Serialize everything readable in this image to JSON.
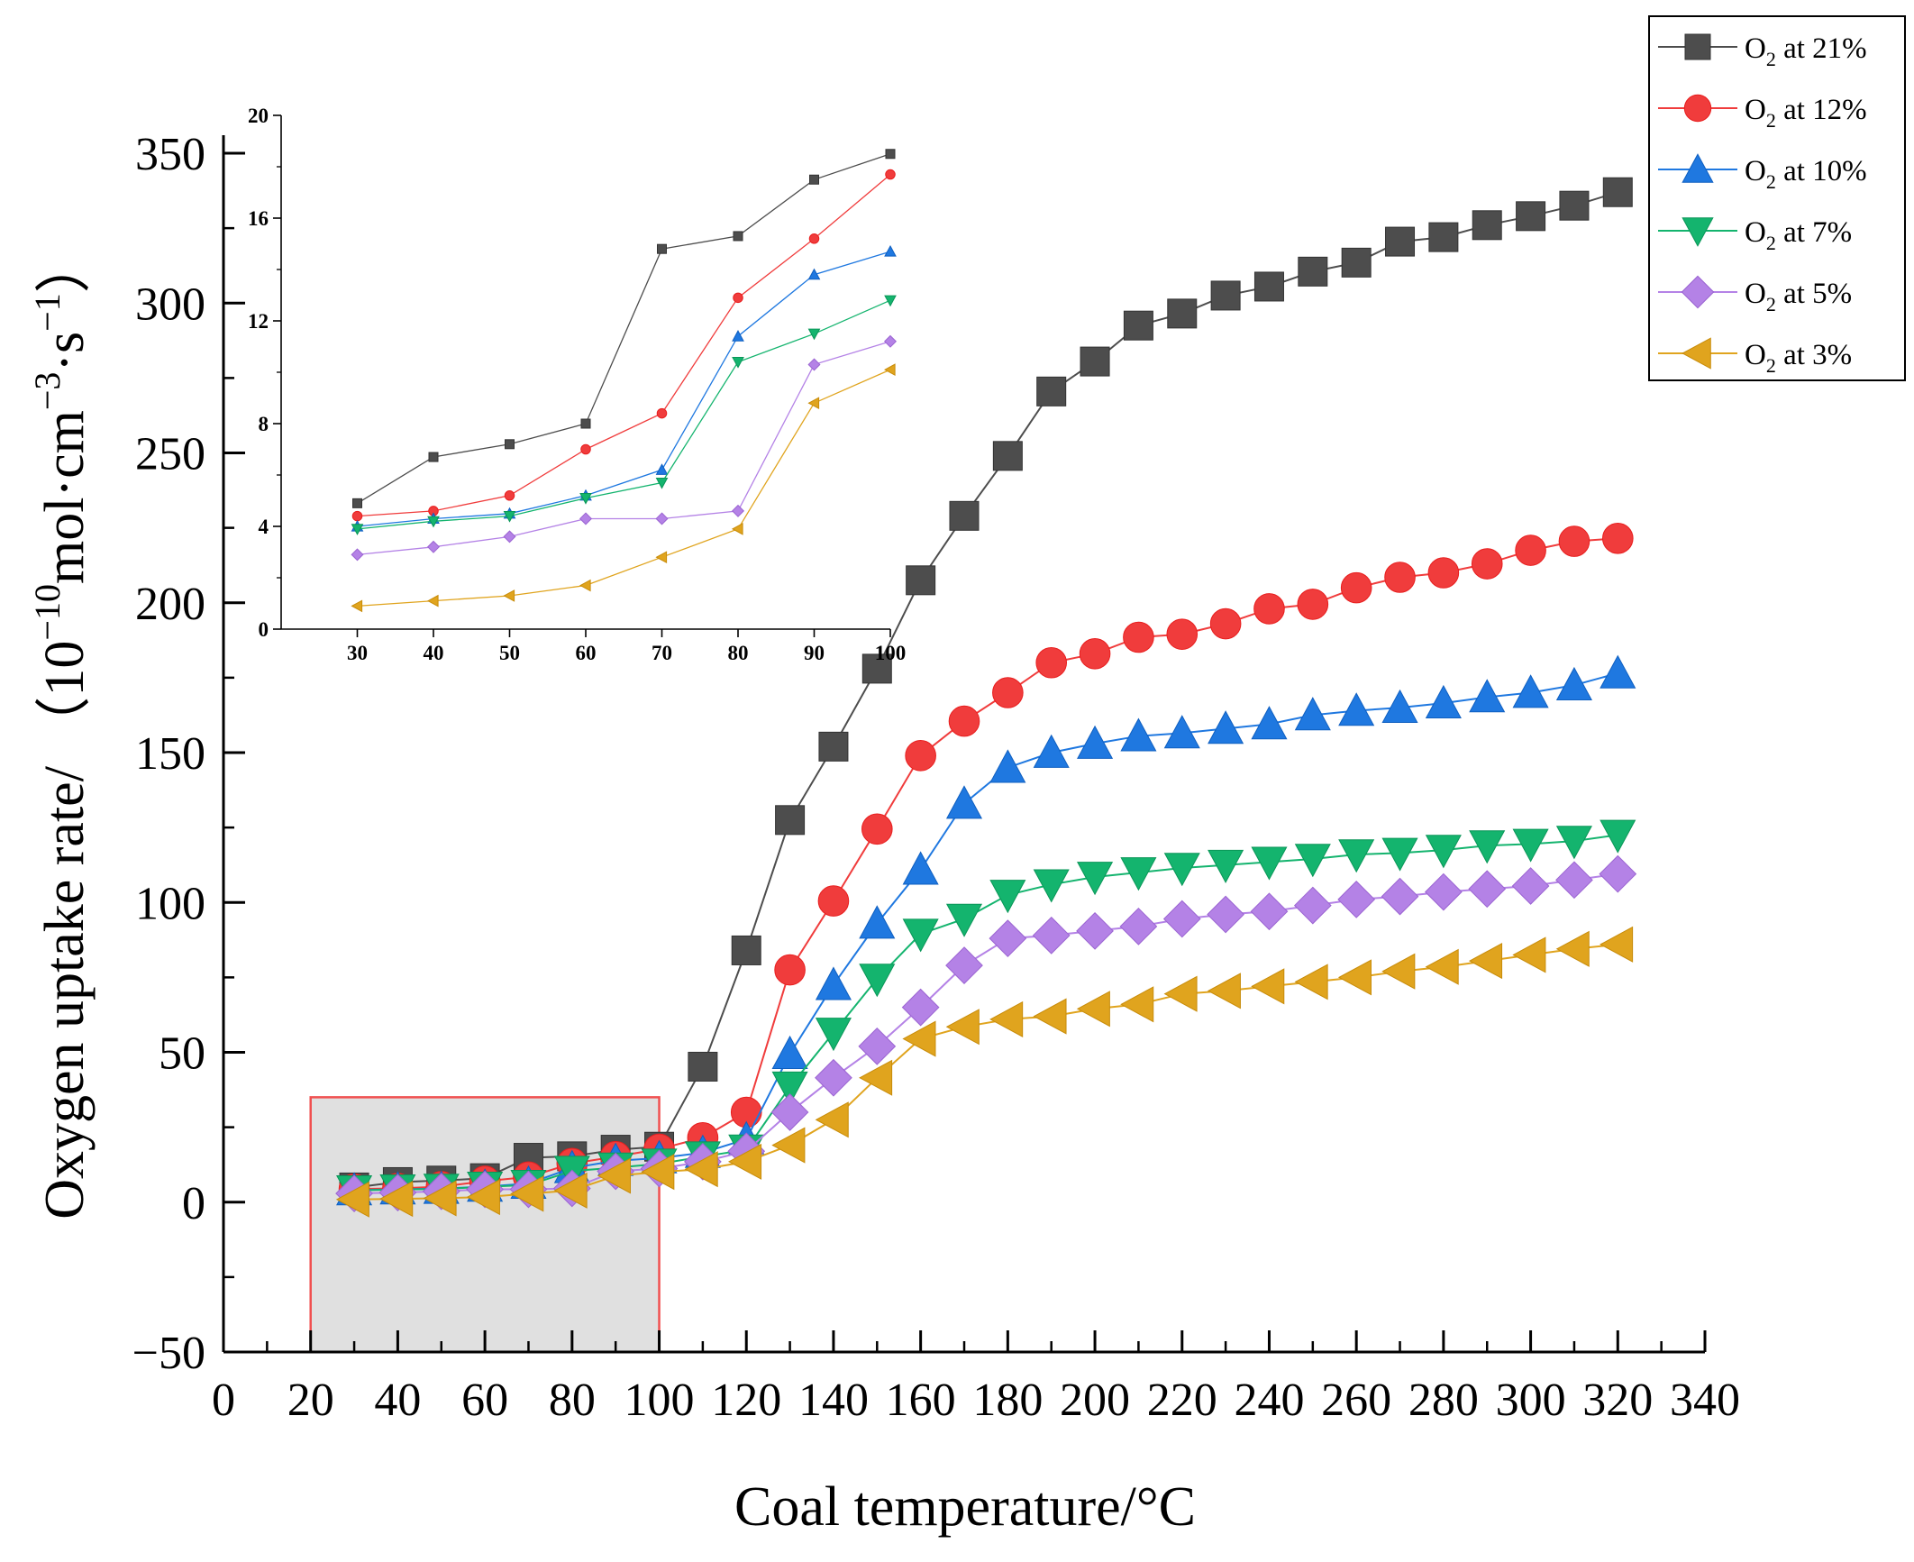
{
  "chart_data": {
    "type": "line",
    "xlabel": "Coal temperature/°C",
    "ylabel": {
      "base": "Oxygen uptake rate/ （10",
      "exp1": "−10",
      "mid1": "mol·cm",
      "exp2": "−3",
      "mid2": "·s",
      "exp3": "−1",
      "tail": "）"
    },
    "xlim": [
      0,
      340
    ],
    "ylim": [
      -50,
      350
    ],
    "xticks": [
      0,
      20,
      40,
      60,
      80,
      100,
      120,
      140,
      160,
      180,
      200,
      220,
      240,
      260,
      280,
      300,
      320,
      340
    ],
    "yticks": [
      -50,
      0,
      50,
      100,
      150,
      200,
      250,
      300,
      350
    ],
    "ytick_labels": [
      "−50",
      "0",
      "50",
      "100",
      "150",
      "200",
      "250",
      "300",
      "350"
    ],
    "highlight_region": {
      "x": [
        20,
        100
      ],
      "y": [
        -50,
        35
      ]
    },
    "x": [
      30,
      40,
      50,
      60,
      70,
      80,
      90,
      100,
      110,
      120,
      130,
      140,
      150,
      160,
      170,
      180,
      190,
      200,
      210,
      220,
      230,
      240,
      250,
      260,
      270,
      280,
      290,
      300,
      310,
      320
    ],
    "series": [
      {
        "name": "O2 at 21%",
        "label_sub": "2",
        "label_prefix": "O",
        "label_suffix": " at 21%",
        "color": "#4d4d4d",
        "edge": "#333333",
        "marker": "square",
        "values": [
          4.9,
          6.7,
          7.2,
          8.0,
          14.8,
          15.3,
          17.5,
          18.5,
          45.2,
          84.0,
          127.5,
          152.0,
          178.0,
          207.5,
          229.0,
          249.0,
          270.5,
          280.5,
          292.5,
          296.5,
          302.5,
          305.5,
          310.5,
          313.5,
          320.5,
          322.0,
          326.0,
          329.0,
          332.5,
          337.0
        ]
      },
      {
        "name": "O2 at 12%",
        "label_sub": "2",
        "label_prefix": "O",
        "label_suffix": " at 12%",
        "color": "#f03c3c",
        "edge": "#e81e1e",
        "marker": "circle",
        "values": [
          4.4,
          4.6,
          5.2,
          7.0,
          8.4,
          12.9,
          15.2,
          17.7,
          21.5,
          30.0,
          77.5,
          100.5,
          124.5,
          149.0,
          160.5,
          170.0,
          180.0,
          183.0,
          188.5,
          189.5,
          193.0,
          198.0,
          199.5,
          205.0,
          208.5,
          210.0,
          213.0,
          217.5,
          220.5,
          221.5
        ]
      },
      {
        "name": "O2 at 10%",
        "label_sub": "2",
        "label_prefix": "O",
        "label_suffix": " at 10%",
        "color": "#1f78e0",
        "edge": "#0f5fc0",
        "marker": "triangle-up",
        "values": [
          4.0,
          4.3,
          4.5,
          5.2,
          6.2,
          11.4,
          13.8,
          14.7,
          16.5,
          21.0,
          49.5,
          72.5,
          93.0,
          111.0,
          133.0,
          145.0,
          150.0,
          153.0,
          155.5,
          156.5,
          158.0,
          159.5,
          162.5,
          164.0,
          165.0,
          166.5,
          168.5,
          170.0,
          172.5,
          176.5
        ]
      },
      {
        "name": "O2 at 7%",
        "label_sub": "2",
        "label_prefix": "O",
        "label_suffix": " at 7%",
        "color": "#14b46e",
        "edge": "#0a9658",
        "marker": "triangle-down",
        "values": [
          3.9,
          4.2,
          4.4,
          5.1,
          5.7,
          10.4,
          11.5,
          12.8,
          15.2,
          17.5,
          38.5,
          56.5,
          74.5,
          89.5,
          94.5,
          102.5,
          106.0,
          108.5,
          110.0,
          111.5,
          112.5,
          113.5,
          114.5,
          116.0,
          116.5,
          117.5,
          119.0,
          119.5,
          120.5,
          122.5
        ]
      },
      {
        "name": "O2 at 5%",
        "label_sub": "2",
        "label_prefix": "O",
        "label_suffix": " at 5%",
        "color": "#b482e6",
        "edge": "#9b64d2",
        "marker": "diamond",
        "values": [
          2.9,
          3.2,
          3.6,
          4.3,
          4.3,
          4.6,
          10.3,
          11.2,
          13.5,
          17.0,
          30.0,
          41.5,
          52.0,
          65.0,
          79.0,
          88.0,
          89.0,
          90.5,
          92.0,
          94.5,
          96.0,
          97.0,
          99.0,
          101.0,
          102.0,
          103.5,
          104.5,
          105.5,
          107.5,
          109.5
        ]
      },
      {
        "name": "O2 at 3%",
        "label_sub": "2",
        "label_prefix": "O",
        "label_suffix": " at 3%",
        "color": "#e0a41e",
        "edge": "#c88c0a",
        "marker": "triangle-left",
        "values": [
          0.9,
          1.1,
          1.3,
          1.7,
          2.8,
          3.9,
          8.8,
          10.1,
          11.0,
          13.5,
          19.0,
          27.5,
          41.5,
          54.5,
          58.5,
          61.0,
          62.0,
          64.5,
          66.0,
          69.5,
          70.5,
          72.0,
          73.5,
          75.0,
          77.0,
          78.5,
          80.5,
          82.5,
          84.5,
          86.0
        ]
      }
    ],
    "inset": {
      "xlim": [
        20,
        100
      ],
      "ylim": [
        0,
        20
      ],
      "xticks": [
        30,
        40,
        50,
        60,
        70,
        80,
        90,
        100
      ],
      "yticks": [
        0,
        4,
        8,
        12,
        16,
        20
      ],
      "x": [
        30,
        40,
        50,
        60,
        70,
        80,
        90,
        100
      ],
      "values": [
        [
          4.9,
          6.7,
          7.2,
          8.0,
          14.8,
          15.3,
          17.5,
          18.5
        ],
        [
          4.4,
          4.6,
          5.2,
          7.0,
          8.4,
          12.9,
          15.2,
          17.7
        ],
        [
          4.0,
          4.3,
          4.5,
          5.2,
          6.2,
          11.4,
          13.8,
          14.7
        ],
        [
          3.9,
          4.2,
          4.4,
          5.1,
          5.7,
          10.4,
          11.5,
          12.8
        ],
        [
          2.9,
          3.2,
          3.6,
          4.3,
          4.3,
          4.6,
          10.3,
          11.2
        ],
        [
          0.9,
          1.1,
          1.3,
          1.7,
          2.8,
          3.9,
          8.8,
          10.1
        ]
      ]
    }
  }
}
